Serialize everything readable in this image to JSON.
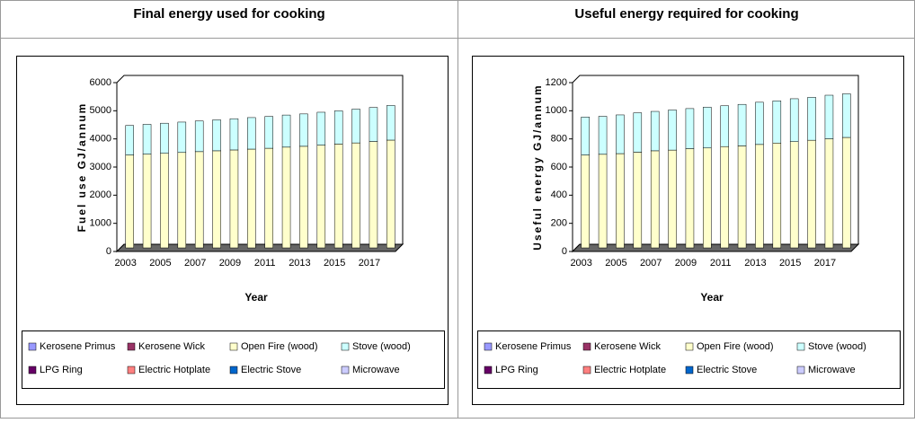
{
  "chart_data": [
    {
      "type": "bar",
      "stacked": true,
      "title": "Final energy used for cooking",
      "x_label": "Year",
      "y_label": "Fuel use GJ/annum",
      "categories": [
        "2003",
        null,
        "2005",
        null,
        "2007",
        null,
        "2009",
        null,
        "2011",
        null,
        "2013",
        null,
        "2015",
        null,
        "2017",
        null
      ],
      "ylim": [
        0,
        6000
      ],
      "yticks": [
        0,
        1000,
        2000,
        3000,
        4000,
        5000,
        6000
      ],
      "series": [
        {
          "name": "Kerosene Primus",
          "color": "#9999ff",
          "values": [
            0,
            0,
            0,
            0,
            0,
            0,
            0,
            0,
            0,
            0,
            0,
            0,
            0,
            0,
            0,
            0
          ]
        },
        {
          "name": "Kerosene Wick",
          "color": "#993366",
          "values": [
            0,
            0,
            0,
            0,
            0,
            0,
            0,
            0,
            0,
            0,
            0,
            0,
            0,
            0,
            0,
            0
          ]
        },
        {
          "name": "Open Fire (wood)",
          "color": "#ffffcc",
          "values": [
            3300,
            3330,
            3360,
            3390,
            3420,
            3450,
            3480,
            3510,
            3540,
            3580,
            3610,
            3650,
            3690,
            3730,
            3780,
            3830
          ]
        },
        {
          "name": "Stove (wood)",
          "color": "#ccffff",
          "values": [
            1050,
            1060,
            1070,
            1080,
            1090,
            1100,
            1110,
            1120,
            1130,
            1140,
            1150,
            1170,
            1180,
            1200,
            1210,
            1230
          ]
        },
        {
          "name": "LPG Ring",
          "color": "#660066",
          "values": [
            0,
            0,
            0,
            0,
            0,
            0,
            0,
            0,
            0,
            0,
            0,
            0,
            0,
            0,
            0,
            0
          ]
        },
        {
          "name": "Electric Hotplate",
          "color": "#ff8080",
          "values": [
            0,
            0,
            0,
            0,
            0,
            0,
            0,
            0,
            0,
            0,
            0,
            0,
            0,
            0,
            0,
            0
          ]
        },
        {
          "name": "Electric Stove",
          "color": "#0066cc",
          "values": [
            0,
            0,
            0,
            0,
            0,
            0,
            0,
            0,
            0,
            0,
            0,
            0,
            0,
            0,
            0,
            0
          ]
        },
        {
          "name": "Microwave",
          "color": "#ccccff",
          "values": [
            0,
            0,
            0,
            0,
            0,
            0,
            0,
            0,
            0,
            0,
            0,
            0,
            0,
            0,
            0,
            0
          ]
        }
      ]
    },
    {
      "type": "bar",
      "stacked": true,
      "title": "Useful energy required for cooking",
      "x_label": "Year",
      "y_label": "Useful energy GJ/annum",
      "categories": [
        "2003",
        null,
        "2005",
        null,
        "2007",
        null,
        "2009",
        null,
        "2011",
        null,
        "2013",
        null,
        "2015",
        null,
        "2017",
        null
      ],
      "ylim": [
        0,
        1200
      ],
      "yticks": [
        0,
        200,
        400,
        600,
        800,
        1000,
        1200
      ],
      "series": [
        {
          "name": "Kerosene Primus",
          "color": "#9999ff",
          "values": [
            0,
            0,
            0,
            0,
            0,
            0,
            0,
            0,
            0,
            0,
            0,
            0,
            0,
            0,
            0,
            0
          ]
        },
        {
          "name": "Kerosene Wick",
          "color": "#993366",
          "values": [
            0,
            0,
            0,
            0,
            0,
            0,
            0,
            0,
            0,
            0,
            0,
            0,
            0,
            0,
            0,
            0
          ]
        },
        {
          "name": "Open Fire (wood)",
          "color": "#ffffcc",
          "values": [
            660,
            665,
            670,
            680,
            690,
            695,
            705,
            710,
            720,
            725,
            735,
            745,
            755,
            765,
            775,
            785
          ]
        },
        {
          "name": "Stove (wood)",
          "color": "#ccffff",
          "values": [
            270,
            270,
            275,
            280,
            280,
            285,
            285,
            290,
            290,
            295,
            300,
            300,
            305,
            305,
            310,
            310
          ]
        },
        {
          "name": "LPG Ring",
          "color": "#660066",
          "values": [
            0,
            0,
            0,
            0,
            0,
            0,
            0,
            0,
            0,
            0,
            0,
            0,
            0,
            0,
            0,
            0
          ]
        },
        {
          "name": "Electric Hotplate",
          "color": "#ff8080",
          "values": [
            0,
            0,
            0,
            0,
            0,
            0,
            0,
            0,
            0,
            0,
            0,
            0,
            0,
            0,
            0,
            0
          ]
        },
        {
          "name": "Electric Stove",
          "color": "#0066cc",
          "values": [
            0,
            0,
            0,
            0,
            0,
            0,
            0,
            0,
            0,
            0,
            0,
            0,
            0,
            0,
            0,
            0
          ]
        },
        {
          "name": "Microwave",
          "color": "#ccccff",
          "values": [
            0,
            0,
            0,
            0,
            0,
            0,
            0,
            0,
            0,
            0,
            0,
            0,
            0,
            0,
            0,
            0
          ]
        }
      ]
    }
  ]
}
